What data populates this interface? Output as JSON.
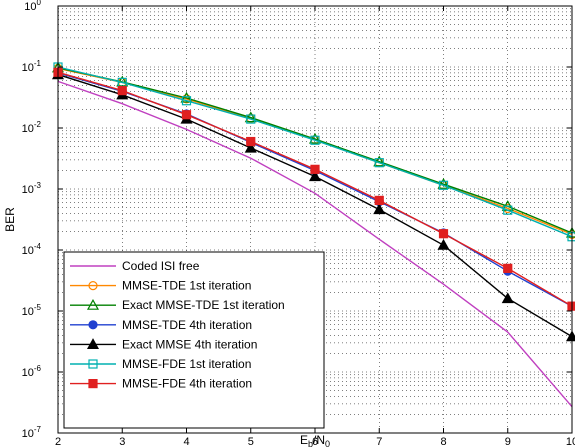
{
  "chart_data": {
    "type": "line",
    "title": "",
    "xlabel": "E_b/N_0",
    "ylabel": "BER",
    "y_scale": "log",
    "x_ticks": [
      2,
      3,
      4,
      5,
      6,
      7,
      8,
      9,
      10
    ],
    "y_tick_exponents": [
      0,
      -1,
      -2,
      -3,
      -4,
      -5,
      -6,
      -7
    ],
    "xlim": [
      2,
      10
    ],
    "ylim": [
      1e-07,
      1
    ],
    "grid": true,
    "legend_position": "bottom-left",
    "series": [
      {
        "name": "Coded ISI free",
        "color": "#c040c0",
        "marker": "none",
        "x": [
          2,
          3,
          4,
          5,
          6,
          7,
          8,
          9,
          10
        ],
        "y": [
          0.058,
          0.025,
          0.0095,
          0.0032,
          0.00085,
          0.00015,
          2.75e-05,
          4.5e-06,
          2.7e-07
        ]
      },
      {
        "name": "MMSE-TDE 1st iteration",
        "color": "#ff8800",
        "marker": "circle",
        "x": [
          2,
          3,
          4,
          5,
          6,
          7,
          8,
          9,
          10
        ],
        "y": [
          0.095,
          0.056,
          0.03,
          0.0145,
          0.0064,
          0.0027,
          0.00115,
          0.00048,
          0.00018
        ]
      },
      {
        "name": "Exact MMSE-TDE 1st iteration",
        "color": "#008000",
        "marker": "triangle",
        "x": [
          2,
          3,
          4,
          5,
          6,
          7,
          8,
          9,
          10
        ],
        "y": [
          0.097,
          0.057,
          0.031,
          0.0148,
          0.0066,
          0.0028,
          0.0012,
          0.00052,
          0.00019
        ]
      },
      {
        "name": "MMSE-TDE 4th iteration",
        "color": "#2040d0",
        "marker": "circle-filled",
        "x": [
          2,
          3,
          4,
          5,
          6,
          7,
          8,
          9,
          10
        ],
        "y": [
          0.08,
          0.04,
          0.017,
          0.0058,
          0.002,
          0.00062,
          0.00019,
          4.5e-05,
          1.2e-05
        ]
      },
      {
        "name": "Exact MMSE 4th iteration",
        "color": "#000000",
        "marker": "triangle-filled",
        "x": [
          2,
          3,
          4,
          5,
          6,
          7,
          8,
          9,
          10
        ],
        "y": [
          0.075,
          0.035,
          0.014,
          0.0047,
          0.0016,
          0.00046,
          0.00012,
          1.6e-05,
          3.8e-06
        ]
      },
      {
        "name": "MMSE-FDE 1st iteration",
        "color": "#00b0b0",
        "marker": "square",
        "x": [
          2,
          3,
          4,
          5,
          6,
          7,
          8,
          9,
          10
        ],
        "y": [
          0.1,
          0.056,
          0.028,
          0.014,
          0.0063,
          0.0027,
          0.00115,
          0.00045,
          0.000165
        ]
      },
      {
        "name": "MMSE-FDE 4th iteration",
        "color": "#e02020",
        "marker": "square-filled",
        "x": [
          2,
          3,
          4,
          5,
          6,
          7,
          8,
          9,
          10
        ],
        "y": [
          0.082,
          0.041,
          0.0165,
          0.006,
          0.0021,
          0.00065,
          0.000185,
          5e-05,
          1.2e-05
        ]
      }
    ]
  }
}
